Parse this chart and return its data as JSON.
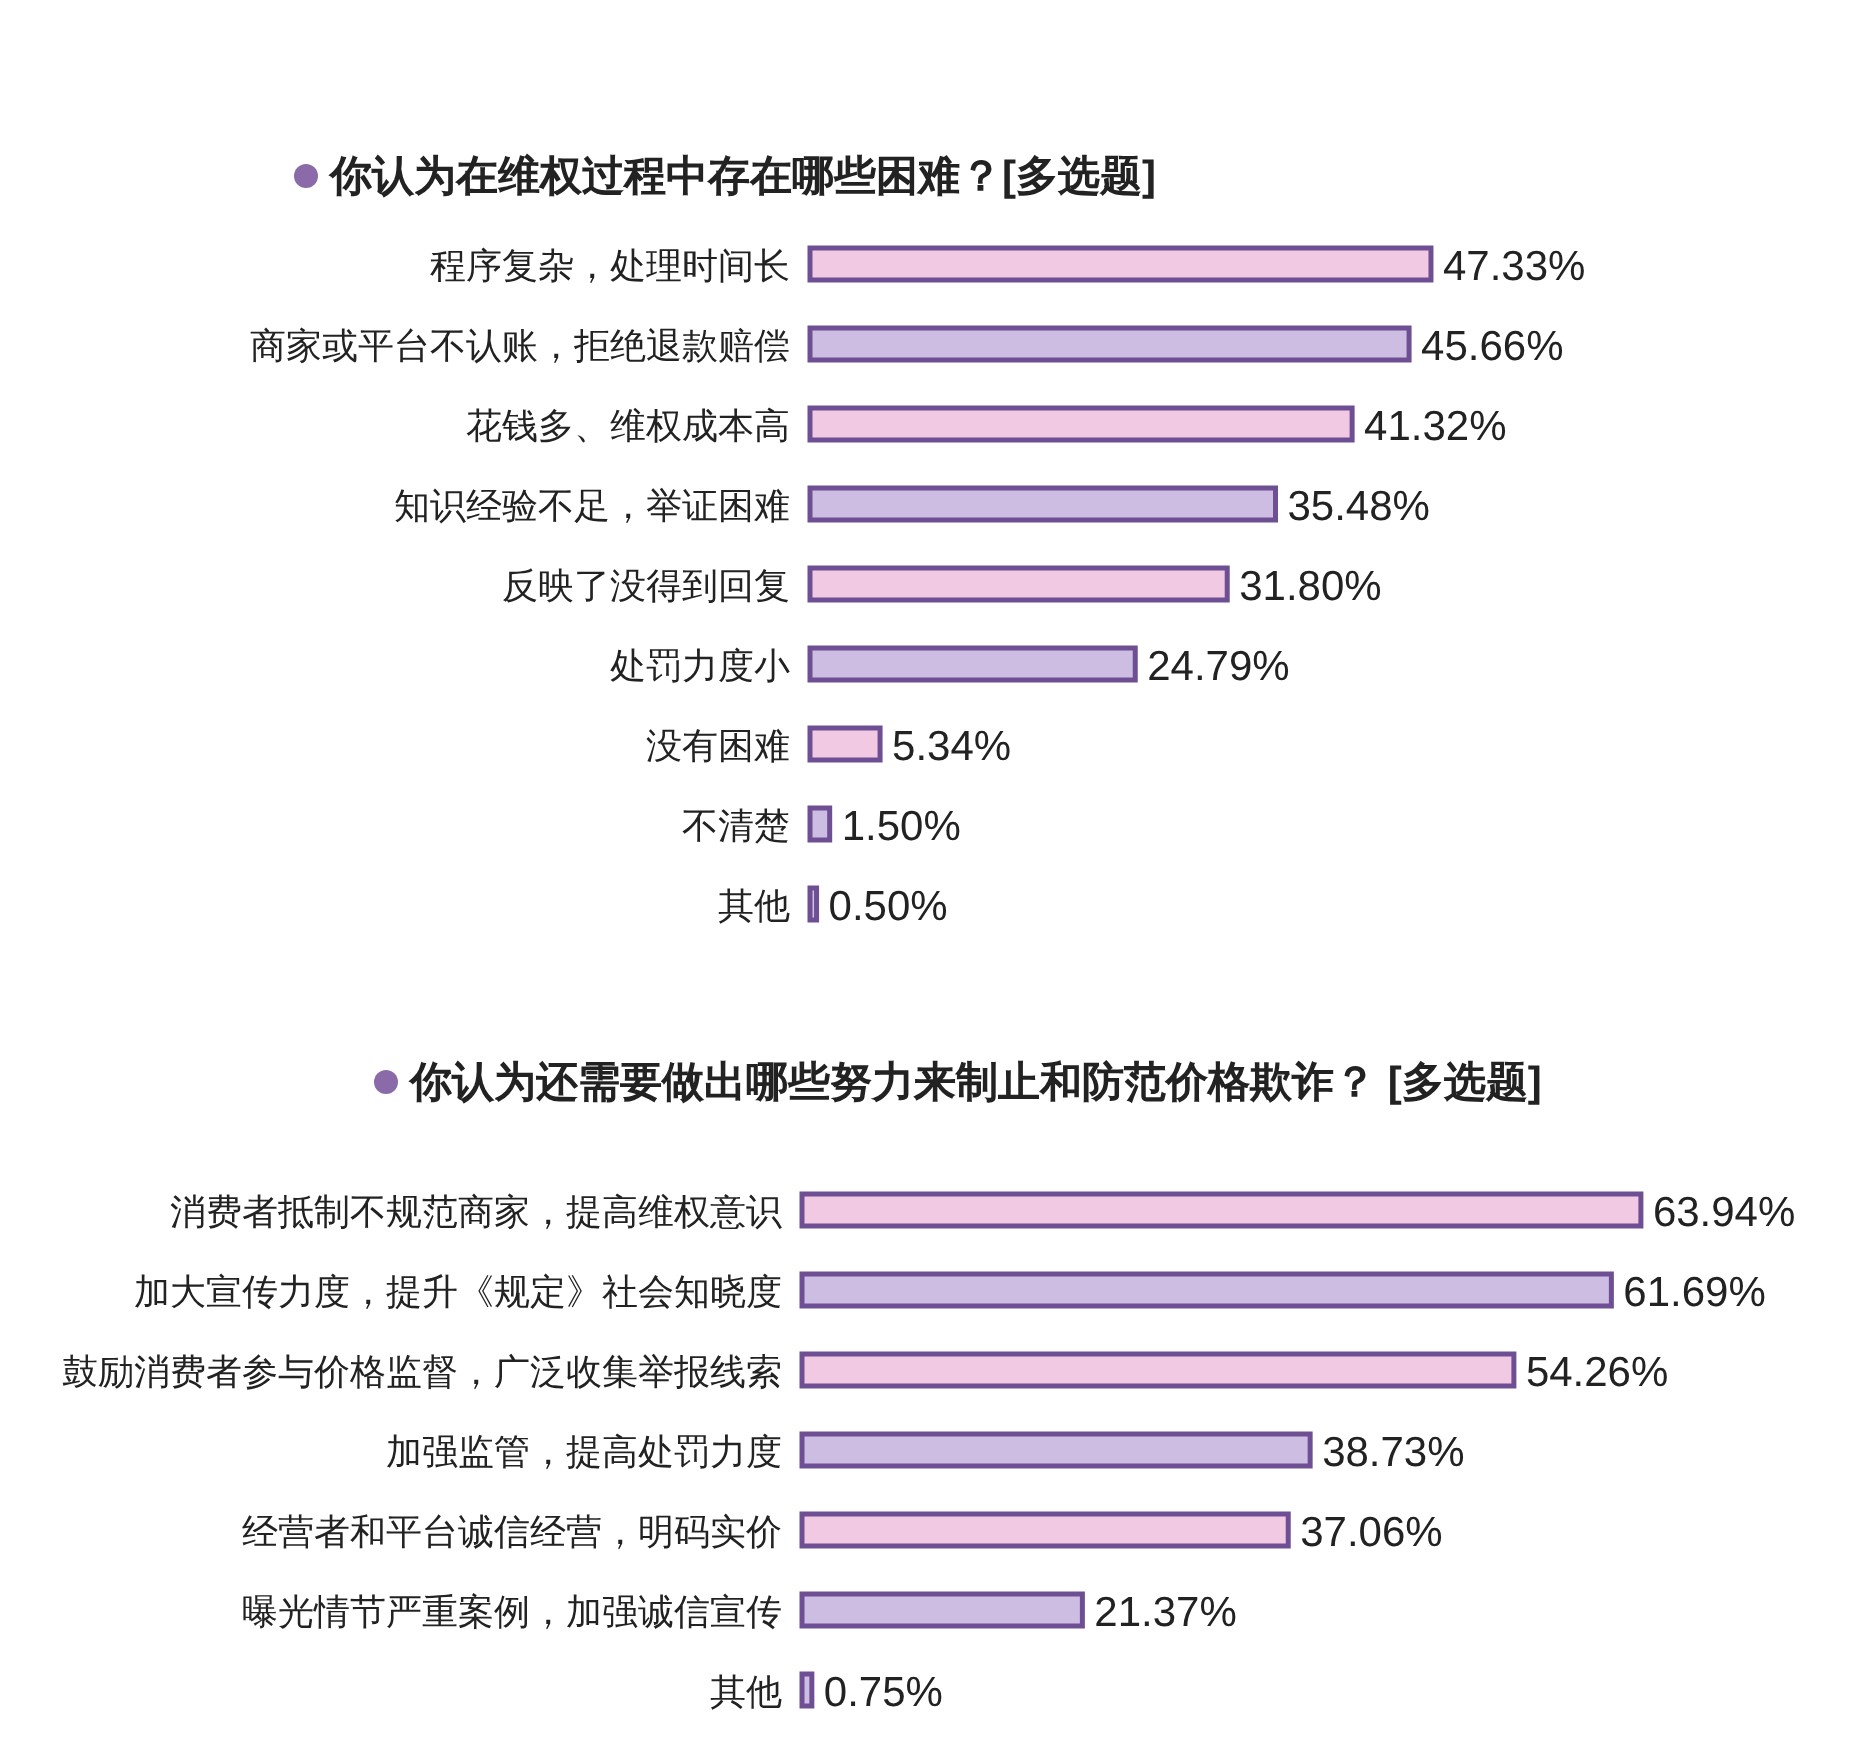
{
  "chart_data": [
    {
      "type": "bar",
      "orientation": "horizontal",
      "title": "你认为在维权过程中存在哪些困难？[多选题]",
      "categories": [
        "程序复杂，处理时间长",
        "商家或平台不认账，拒绝退款赔偿",
        "花钱多、维权成本高",
        "知识经验不足，举证困难",
        "反映了没得到回复",
        "处罚力度小",
        "没有困难",
        "不清楚",
        "其他"
      ],
      "values": [
        47.33,
        45.66,
        41.32,
        35.48,
        31.8,
        24.79,
        5.34,
        1.5,
        0.5
      ],
      "value_labels": [
        "47.33%",
        "45.66%",
        "41.32%",
        "35.48%",
        "31.80%",
        "24.79%",
        "5.34%",
        "1.50%",
        "0.50%"
      ],
      "colors": [
        "#f2c9e3",
        "#cdbde3",
        "#f2c9e3",
        "#cdbde3",
        "#f2c9e3",
        "#cdbde3",
        "#f2c9e3",
        "#cdbde3",
        "#cdbde3"
      ]
    },
    {
      "type": "bar",
      "orientation": "horizontal",
      "title": "你认为还需要做出哪些努力来制止和防范价格欺诈？ [多选题]",
      "categories": [
        "消费者抵制不规范商家，提高维权意识",
        "加大宣传力度，提升《规定》社会知晓度",
        "鼓励消费者参与价格监督，广泛收集举报线索",
        "加强监管，提高处罚力度",
        "经营者和平台诚信经营，明码实价",
        "曝光情节严重案例，加强诚信宣传",
        "其他"
      ],
      "values": [
        63.94,
        61.69,
        54.26,
        38.73,
        37.06,
        21.37,
        0.75
      ],
      "value_labels": [
        "63.94%",
        "61.69%",
        "54.26%",
        "38.73%",
        "37.06%",
        "21.37%",
        "0.75%"
      ],
      "colors": [
        "#f2c9e3",
        "#cdbde3",
        "#f2c9e3",
        "#cdbde3",
        "#f2c9e3",
        "#cdbde3",
        "#cdbde3"
      ]
    }
  ]
}
